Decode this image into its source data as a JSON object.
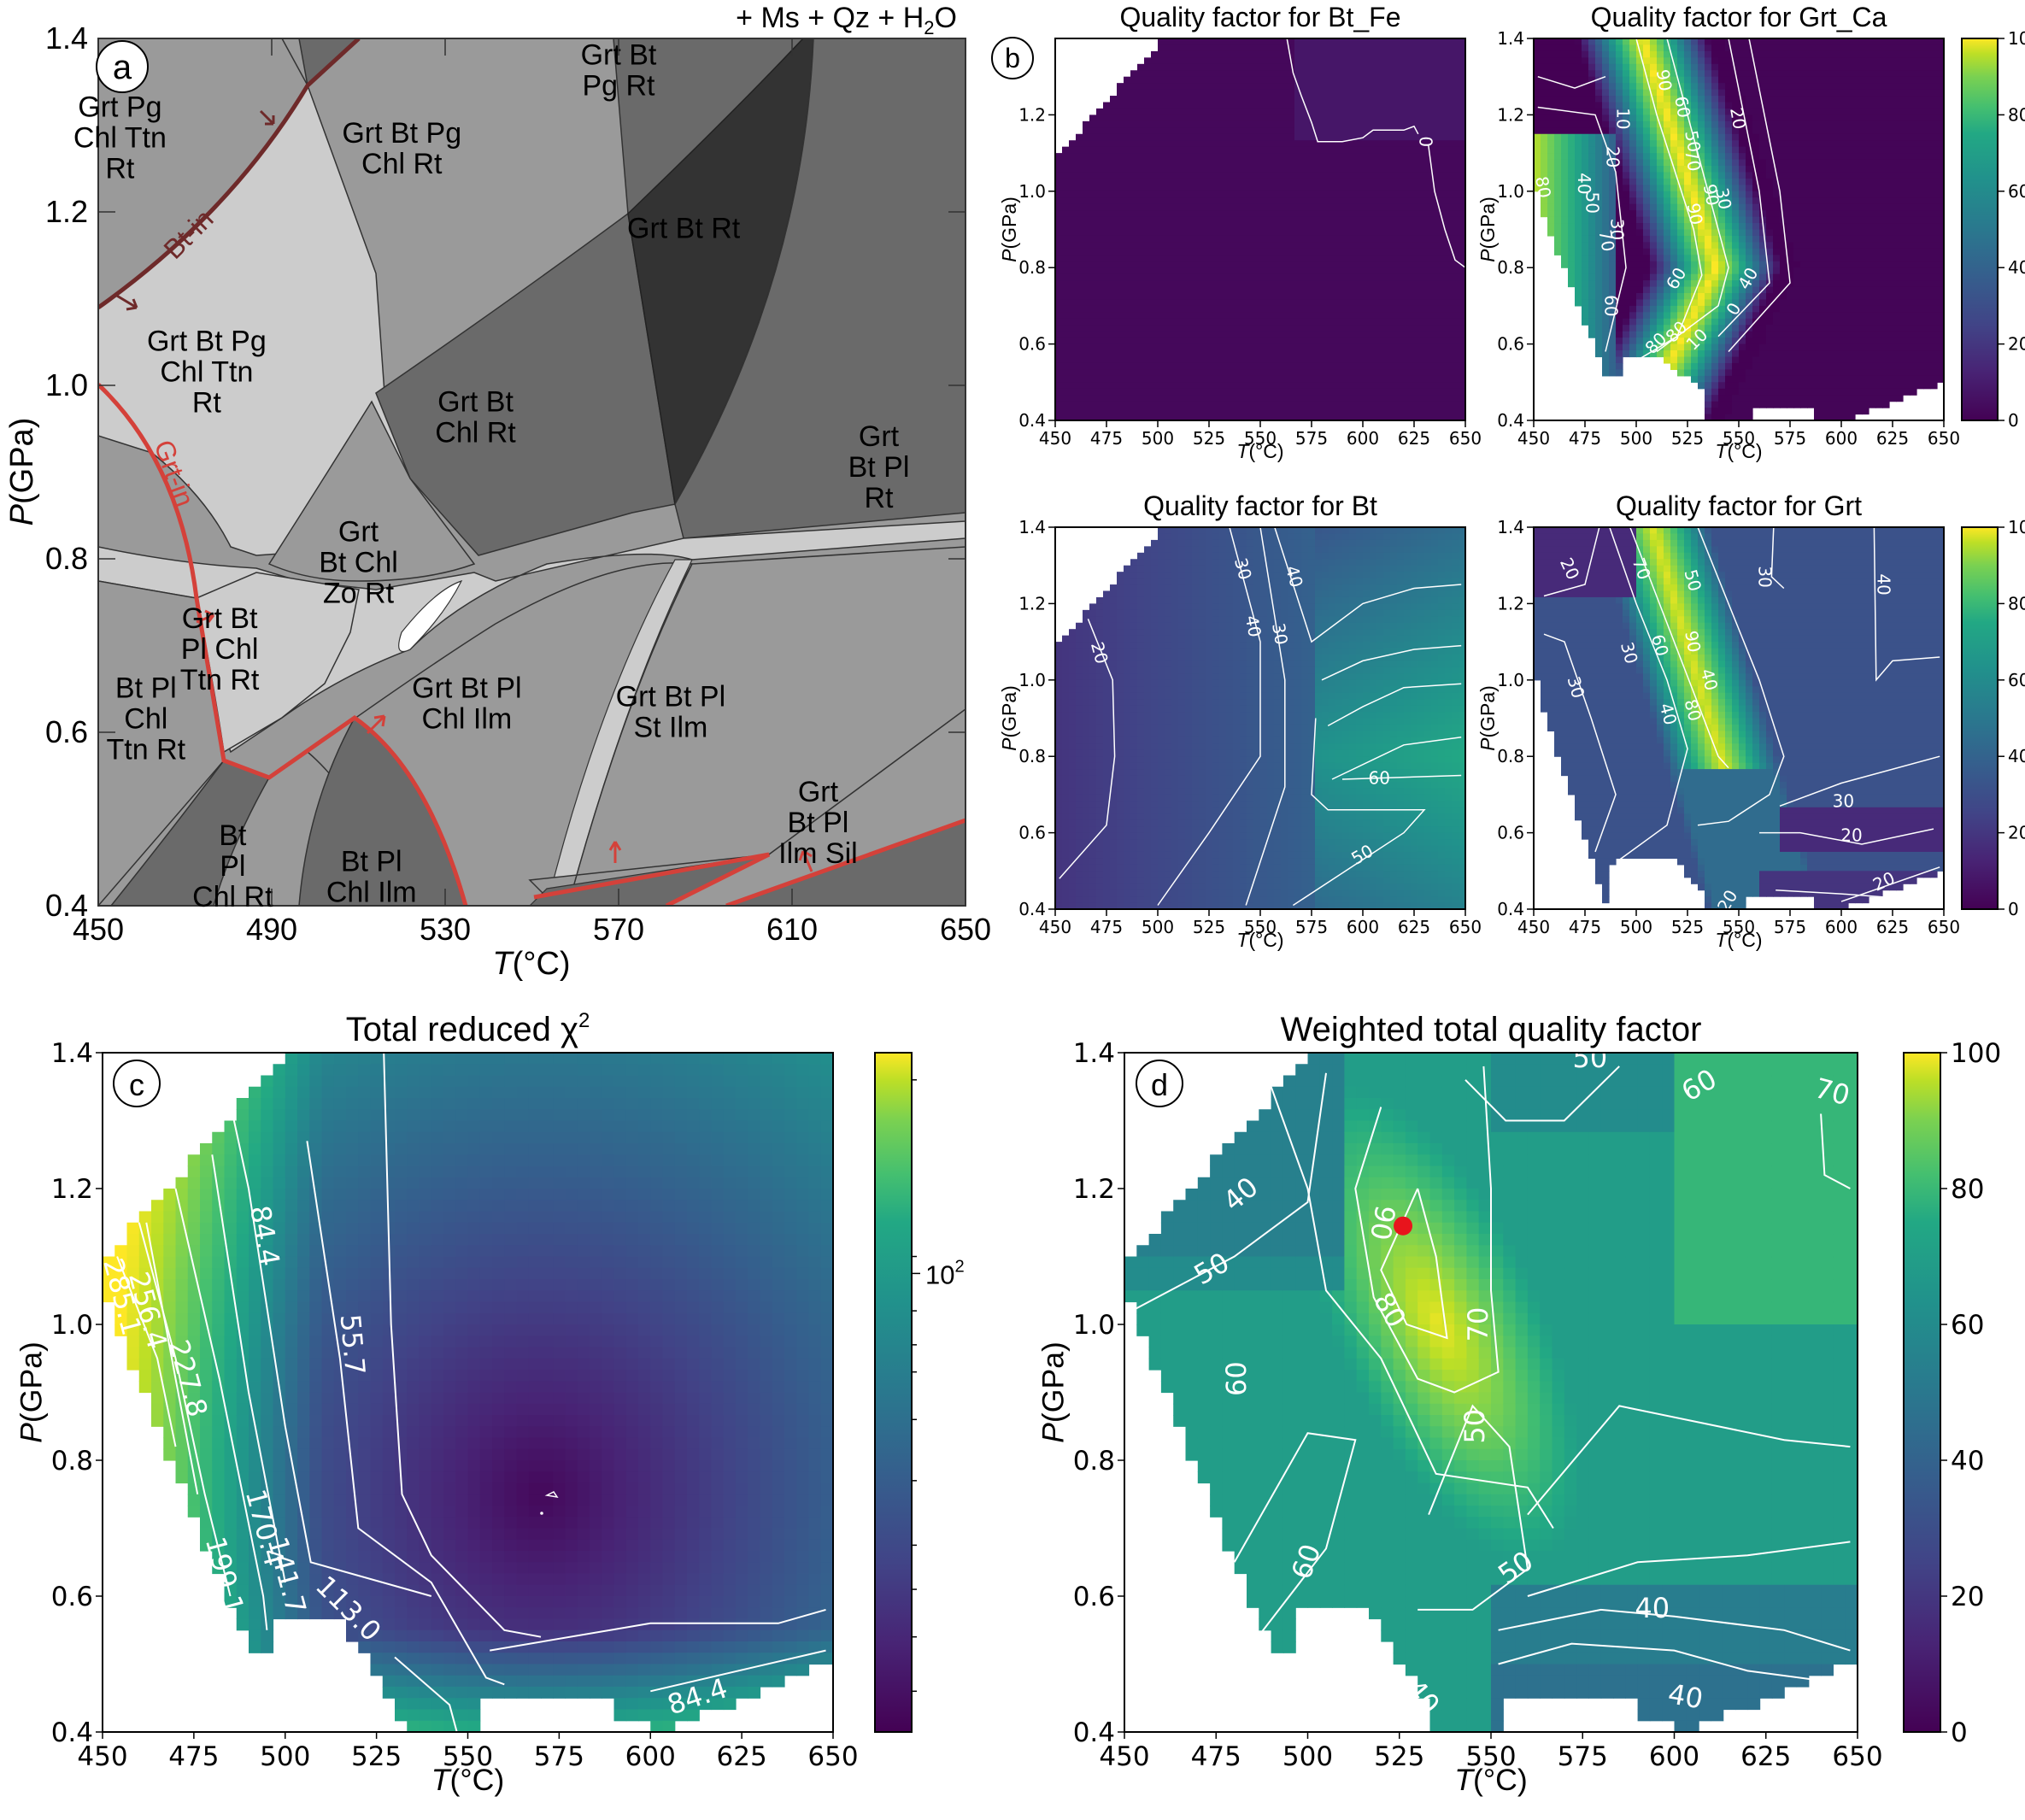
{
  "chart_data": [
    {
      "panel": "a",
      "type": "phase-diagram",
      "title": "",
      "assemblage_suffix": "+ Ms + Qz + H",
      "assemblage_sub": "2",
      "assemblage_end": "O",
      "xlabel": "T(°C)",
      "xlabel_italic": "T",
      "xlabel_rest": "(°C)",
      "ylabel_italic": "P",
      "ylabel_rest": "(GPa)",
      "xlim": [
        450,
        650
      ],
      "ylim": [
        0.4,
        1.4
      ],
      "xticks": [
        "450",
        "490",
        "530",
        "570",
        "610",
        "650"
      ],
      "yticks": [
        "0.4",
        "0.6",
        "0.8",
        "1.0",
        "1.2",
        "1.4"
      ],
      "isograds": [
        {
          "label": "Bt-in",
          "color": "#6e2a2a"
        },
        {
          "label": "Grt-in",
          "color": "#d4413a"
        }
      ],
      "fields": [
        {
          "lines": [
            "Grt Pg",
            "Chl Ttn",
            "Rt"
          ],
          "shade": "#9a9a9a"
        },
        {
          "lines": [
            "Grt Bt",
            "Pg Rt"
          ],
          "shade": "#6a6a6a"
        },
        {
          "lines": [
            "Grt Bt Pg",
            "Chl Rt"
          ],
          "shade": "#9a9a9a"
        },
        {
          "lines": [
            "Grt Bt Pg",
            "Chl Ttn",
            "Rt"
          ],
          "shade": "#cccccc"
        },
        {
          "lines": [
            "Grt Bt Rt"
          ],
          "shade": "#333333"
        },
        {
          "lines": [
            "Grt Bt",
            "Chl Rt"
          ],
          "shade": "#6a6a6a"
        },
        {
          "lines": [
            "Grt",
            "Bt Pl",
            "Rt"
          ],
          "shade": "#6a6a6a"
        },
        {
          "lines": [
            "Grt",
            "Bt Chl",
            "Zo Rt"
          ],
          "shade": "#9a9a9a"
        },
        {
          "lines": [
            "Grt Bt",
            "Pl Chl",
            "Ttn Rt"
          ],
          "shade": "#cccccc"
        },
        {
          "lines": [
            "Bt Pl",
            "Chl",
            "Ttn Rt"
          ],
          "shade": "#9a9a9a"
        },
        {
          "lines": [
            "Grt Bt Pl",
            "Chl Ilm"
          ],
          "shade": "#9a9a9a"
        },
        {
          "lines": [
            "Grt Bt Pl",
            "St Ilm"
          ],
          "shade": "#9a9a9a"
        },
        {
          "lines": [
            "Bt",
            "Pl",
            "Chl Rt"
          ],
          "shade": "#6a6a6a"
        },
        {
          "lines": [
            "Bt Pl",
            "Chl Ilm"
          ],
          "shade": "#6a6a6a"
        },
        {
          "lines": [
            "Grt",
            "Bt Pl",
            "Ilm Sil"
          ],
          "shade": "#9a9a9a"
        }
      ]
    },
    {
      "panel": "b",
      "type": "heatmap",
      "title": "Quality factor for Bt_Fe",
      "xlabel": "T(°C)",
      "ylabel": "P(GPa)",
      "xlim": [
        450,
        650
      ],
      "ylim": [
        0.4,
        1.4
      ],
      "xticks": [
        "450",
        "475",
        "500",
        "525",
        "550",
        "575",
        "600",
        "625",
        "650"
      ],
      "yticks": [
        "0.4",
        "0.6",
        "0.8",
        "1.0",
        "1.2"
      ],
      "contour_labels": [
        "0"
      ],
      "colorbar": null,
      "value_range": [
        0,
        100
      ]
    },
    {
      "panel": "b",
      "type": "heatmap",
      "title": "Quality factor for Grt_Ca",
      "xlabel": "T(°C)",
      "ylabel": "P(GPa)",
      "xlim": [
        450,
        650
      ],
      "ylim": [
        0.4,
        1.4
      ],
      "xticks": [
        "450",
        "475",
        "500",
        "525",
        "550",
        "575",
        "600",
        "625",
        "650"
      ],
      "yticks": [
        "0.4",
        "0.6",
        "0.8",
        "1.0",
        "1.2",
        "1.4"
      ],
      "contour_labels": [
        "10",
        "20",
        "40",
        "50",
        "30",
        "90",
        "80",
        "70",
        "60",
        "60",
        "50",
        "60",
        "70",
        "90",
        "90",
        "30",
        "40",
        "0",
        "80",
        "80",
        "10",
        "20"
      ],
      "colorbar": {
        "ticks": [
          "0",
          "20",
          "40",
          "60",
          "80",
          "100"
        ],
        "range": [
          0,
          100
        ]
      }
    },
    {
      "panel": "b",
      "type": "heatmap",
      "title": "Quality factor for Bt",
      "xlabel": "T(°C)",
      "ylabel": "P(GPa)",
      "xlim": [
        450,
        650
      ],
      "ylim": [
        0.4,
        1.4
      ],
      "xticks": [
        "450",
        "475",
        "500",
        "525",
        "550",
        "575",
        "600",
        "625",
        "650"
      ],
      "yticks": [
        "0.4",
        "0.6",
        "0.8",
        "1.0",
        "1.2",
        "1.4"
      ],
      "contour_labels": [
        "20",
        "30",
        "40",
        "30",
        "40",
        "60",
        "50"
      ],
      "colorbar": null
    },
    {
      "panel": "b",
      "type": "heatmap",
      "title": "Quality factor for Grt",
      "xlabel": "T(°C)",
      "ylabel": "P(GPa)",
      "xlim": [
        450,
        650
      ],
      "ylim": [
        0.4,
        1.4
      ],
      "xticks": [
        "450",
        "475",
        "500",
        "525",
        "550",
        "575",
        "600",
        "625",
        "650"
      ],
      "yticks": [
        "0.4",
        "0.6",
        "0.8",
        "1.0",
        "1.2",
        "1.4"
      ],
      "contour_labels": [
        "20",
        "70",
        "50",
        "30",
        "40",
        "90",
        "30",
        "60",
        "40",
        "30",
        "40",
        "80",
        "30",
        "20",
        "20",
        "20"
      ],
      "colorbar": {
        "ticks": [
          "0",
          "20",
          "40",
          "60",
          "80",
          "100"
        ],
        "range": [
          0,
          100
        ]
      }
    },
    {
      "panel": "c",
      "type": "heatmap",
      "title": "Total reduced χ",
      "title_sup": "2",
      "xlabel": "T(°C)",
      "ylabel": "P(GPa)",
      "xlim": [
        450,
        650
      ],
      "ylim": [
        0.4,
        1.4
      ],
      "xticks": [
        "450",
        "475",
        "500",
        "525",
        "550",
        "575",
        "600",
        "625",
        "650"
      ],
      "yticks": [
        "0.4",
        "0.6",
        "0.8",
        "1.0",
        "1.2",
        "1.4"
      ],
      "contour_levels": [
        285.1,
        256.4,
        227.8,
        199.1,
        170.4,
        141.7,
        113.0,
        84.4,
        55.7
      ],
      "contour_labels": [
        "285.1",
        "256.4",
        "227.8",
        "199.1",
        "170.4",
        "141.7",
        "113.0",
        "84.4",
        "55.7",
        "84.4"
      ],
      "colorbar": {
        "scale": "log",
        "tick_label_base": "10",
        "tick_label_exp": "2"
      }
    },
    {
      "panel": "d",
      "type": "heatmap",
      "title": "Weighted total quality factor",
      "xlabel": "T(°C)",
      "ylabel": "P(GPa)",
      "xlim": [
        450,
        650
      ],
      "ylim": [
        0.4,
        1.4
      ],
      "xticks": [
        "450",
        "475",
        "500",
        "525",
        "550",
        "575",
        "600",
        "625",
        "650"
      ],
      "yticks": [
        "0.4",
        "0.6",
        "0.8",
        "1.0",
        "1.2",
        "1.4"
      ],
      "contour_labels": [
        "50",
        "60",
        "70",
        "40",
        "50",
        "90",
        "80",
        "70",
        "60",
        "50",
        "60",
        "50",
        "40",
        "40",
        "40"
      ],
      "optimum": {
        "T": 526,
        "P": 1.145,
        "color": "#e8141c"
      },
      "colorbar": {
        "ticks": [
          "0",
          "20",
          "40",
          "60",
          "80",
          "100"
        ],
        "range": [
          0,
          100
        ]
      }
    }
  ],
  "panel_letters": [
    "a",
    "b",
    "c",
    "d"
  ],
  "colors": {
    "viridis_low": "#440154",
    "viridis_mid": "#21918c",
    "viridis_high": "#fde725",
    "bt_in": "#6e2a2a",
    "grt_in": "#d4413a",
    "optimum": "#e8141c"
  }
}
